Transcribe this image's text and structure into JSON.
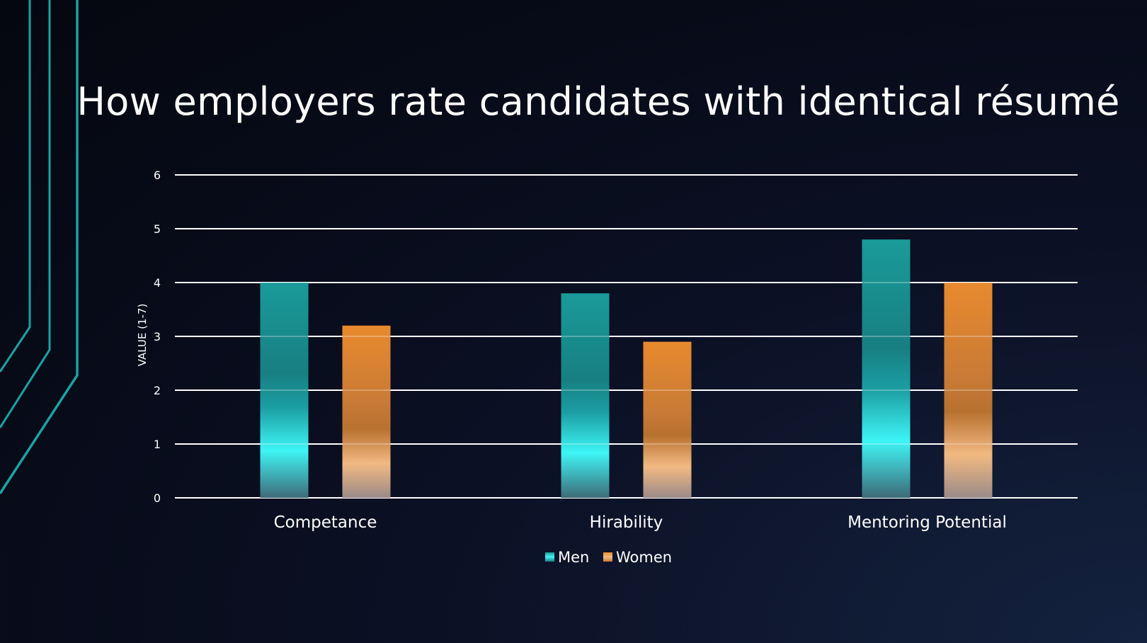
{
  "slide": {
    "title": "How employers rate candidates with identical résumé"
  },
  "colors": {
    "men_top": "#1a9b9a",
    "men_glow": "#3ef5f5",
    "women_top": "#e88a2e",
    "women_light": "#f2b982",
    "gridline": "#ffffff",
    "deco_lines": "#1aa3a3"
  },
  "chart_data": {
    "type": "bar",
    "title": "How employers rate candidates with identical résumé",
    "categories": [
      "Competance",
      "Hirability",
      "Mentoring Potential"
    ],
    "series": [
      {
        "name": "Men",
        "values": [
          4.0,
          3.8,
          4.8
        ]
      },
      {
        "name": "Women",
        "values": [
          3.2,
          2.9,
          4.0
        ]
      }
    ],
    "xlabel": "",
    "ylabel": "VALUE (1-7)",
    "ylim": [
      0,
      6
    ],
    "yticks": [
      "0",
      "1",
      "2",
      "3",
      "4",
      "5",
      "6"
    ],
    "grid": true,
    "legend_position": "bottom"
  }
}
